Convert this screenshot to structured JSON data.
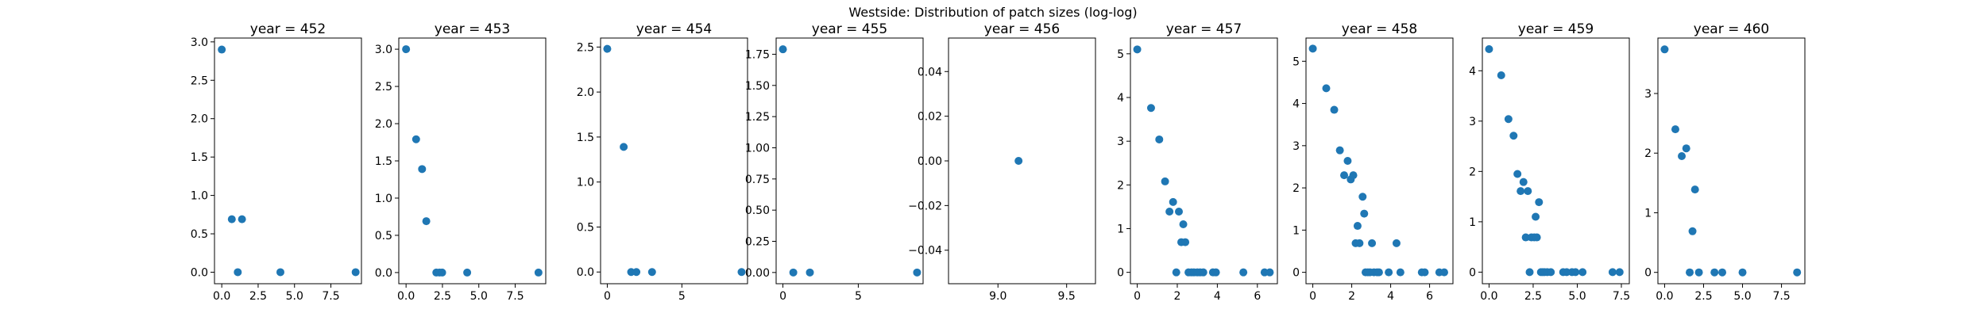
{
  "suptitle": "Westside: Distribution of patch sizes (log-log)",
  "colors": {
    "marker": "#1f77b4"
  },
  "chart_data": [
    {
      "type": "scatter",
      "title": "year = 452",
      "xlim": [
        -0.5,
        9.6
      ],
      "ylim": [
        -0.15,
        3.05
      ],
      "xticks": [
        0.0,
        2.5,
        5.0,
        7.5
      ],
      "xtick_labels": [
        "0.0",
        "2.5",
        "5.0",
        "7.5"
      ],
      "yticks": [
        0.0,
        0.5,
        1.0,
        1.5,
        2.0,
        2.5,
        3.0
      ],
      "ytick_labels": [
        "0.0",
        "0.5",
        "1.0",
        "1.5",
        "2.0",
        "2.5",
        "3.0"
      ],
      "points": [
        [
          0.0,
          2.9
        ],
        [
          0.69,
          0.69
        ],
        [
          1.1,
          0.0
        ],
        [
          1.39,
          0.69
        ],
        [
          4.03,
          0.0
        ],
        [
          9.2,
          0.0
        ]
      ]
    },
    {
      "type": "scatter",
      "title": "year = 453",
      "xlim": [
        -0.5,
        9.6
      ],
      "ylim": [
        -0.15,
        3.15
      ],
      "xticks": [
        0.0,
        2.5,
        5.0,
        7.5
      ],
      "xtick_labels": [
        "0.0",
        "2.5",
        "5.0",
        "7.5"
      ],
      "yticks": [
        0.0,
        0.5,
        1.0,
        1.5,
        2.0,
        2.5,
        3.0
      ],
      "ytick_labels": [
        "0.0",
        "0.5",
        "1.0",
        "1.5",
        "2.0",
        "2.5",
        "3.0"
      ],
      "points": [
        [
          0.0,
          3.0
        ],
        [
          0.69,
          1.79
        ],
        [
          1.1,
          1.39
        ],
        [
          1.39,
          0.69
        ],
        [
          2.08,
          0.0
        ],
        [
          2.3,
          0.0
        ],
        [
          2.48,
          0.0
        ],
        [
          4.2,
          0.0
        ],
        [
          9.1,
          0.0
        ]
      ]
    },
    {
      "type": "scatter",
      "title": "year = 454",
      "xlim": [
        -0.45,
        9.4
      ],
      "ylim": [
        -0.13,
        2.6
      ],
      "xticks": [
        0,
        5
      ],
      "xtick_labels": [
        "0",
        "5"
      ],
      "yticks": [
        0.0,
        0.5,
        1.0,
        1.5,
        2.0,
        2.5
      ],
      "ytick_labels": [
        "0.0",
        "0.5",
        "1.0",
        "1.5",
        "2.0",
        "2.5"
      ],
      "points": [
        [
          0.0,
          2.48
        ],
        [
          1.1,
          1.39
        ],
        [
          1.6,
          0.0
        ],
        [
          1.95,
          0.0
        ],
        [
          3.0,
          0.0
        ],
        [
          9.0,
          0.0
        ]
      ]
    },
    {
      "type": "scatter",
      "title": "year = 455",
      "xlim": [
        -0.45,
        9.3
      ],
      "ylim": [
        -0.09,
        1.88
      ],
      "xticks": [
        0,
        5
      ],
      "xtick_labels": [
        "0",
        "5"
      ],
      "yticks": [
        0.0,
        0.25,
        0.5,
        0.75,
        1.0,
        1.25,
        1.5,
        1.75
      ],
      "ytick_labels": [
        "0.00",
        "0.25",
        "0.50",
        "0.75",
        "1.00",
        "1.25",
        "1.50",
        "1.75"
      ],
      "points": [
        [
          0.0,
          1.79
        ],
        [
          0.69,
          0.0
        ],
        [
          1.79,
          0.0
        ],
        [
          8.9,
          0.0
        ]
      ]
    },
    {
      "type": "scatter",
      "title": "year = 456",
      "xlim": [
        8.64,
        9.71
      ],
      "ylim": [
        -0.055,
        0.055
      ],
      "xticks": [
        9.0,
        9.5
      ],
      "xtick_labels": [
        "9.0",
        "9.5"
      ],
      "yticks": [
        -0.04,
        -0.02,
        0.0,
        0.02,
        0.04
      ],
      "ytick_labels": [
        "−0.04",
        "−0.02",
        "0.00",
        "0.02",
        "0.04"
      ],
      "points": [
        [
          9.15,
          0.0
        ]
      ]
    },
    {
      "type": "scatter",
      "title": "year = 457",
      "xlim": [
        -0.34,
        7.0
      ],
      "ylim": [
        -0.26,
        5.36
      ],
      "xticks": [
        0,
        2,
        4,
        6
      ],
      "xtick_labels": [
        "0",
        "2",
        "4",
        "6"
      ],
      "yticks": [
        0,
        1,
        2,
        3,
        4,
        5
      ],
      "ytick_labels": [
        "0",
        "1",
        "2",
        "3",
        "4",
        "5"
      ],
      "points": [
        [
          0.0,
          5.1
        ],
        [
          0.69,
          3.76
        ],
        [
          1.1,
          3.04
        ],
        [
          1.39,
          2.08
        ],
        [
          1.61,
          1.39
        ],
        [
          1.79,
          1.61
        ],
        [
          1.95,
          0.0
        ],
        [
          2.08,
          1.39
        ],
        [
          2.2,
          0.69
        ],
        [
          2.3,
          1.1
        ],
        [
          2.4,
          0.69
        ],
        [
          2.56,
          0.0
        ],
        [
          2.71,
          0.0
        ],
        [
          2.83,
          0.0
        ],
        [
          3.0,
          0.0
        ],
        [
          3.14,
          0.0
        ],
        [
          3.3,
          0.0
        ],
        [
          3.78,
          0.0
        ],
        [
          3.93,
          0.0
        ],
        [
          5.3,
          0.0
        ],
        [
          6.36,
          0.0
        ],
        [
          6.62,
          0.0
        ]
      ]
    },
    {
      "type": "scatter",
      "title": "year = 458",
      "xlim": [
        -0.35,
        7.2
      ],
      "ylim": [
        -0.27,
        5.55
      ],
      "xticks": [
        0,
        2,
        4,
        6
      ],
      "xtick_labels": [
        "0",
        "2",
        "4",
        "6"
      ],
      "yticks": [
        0,
        1,
        2,
        3,
        4,
        5
      ],
      "ytick_labels": [
        "0",
        "1",
        "2",
        "3",
        "4",
        "5"
      ],
      "points": [
        [
          0.0,
          5.3
        ],
        [
          0.69,
          4.36
        ],
        [
          1.1,
          3.85
        ],
        [
          1.39,
          2.89
        ],
        [
          1.61,
          2.3
        ],
        [
          1.79,
          2.64
        ],
        [
          1.95,
          2.2
        ],
        [
          2.08,
          2.3
        ],
        [
          2.2,
          0.69
        ],
        [
          2.3,
          1.1
        ],
        [
          2.4,
          0.69
        ],
        [
          2.56,
          1.79
        ],
        [
          2.64,
          1.39
        ],
        [
          2.71,
          0.0
        ],
        [
          2.83,
          0.0
        ],
        [
          2.94,
          0.0
        ],
        [
          3.04,
          0.69
        ],
        [
          3.14,
          0.0
        ],
        [
          3.3,
          0.0
        ],
        [
          3.4,
          0.0
        ],
        [
          3.9,
          0.0
        ],
        [
          4.3,
          0.69
        ],
        [
          4.5,
          0.0
        ],
        [
          5.6,
          0.0
        ],
        [
          5.75,
          0.0
        ],
        [
          6.5,
          0.0
        ],
        [
          6.75,
          0.0
        ]
      ]
    },
    {
      "type": "scatter",
      "title": "year = 459",
      "xlim": [
        -0.38,
        7.95
      ],
      "ylim": [
        -0.23,
        4.65
      ],
      "xticks": [
        0.0,
        2.5,
        5.0,
        7.5
      ],
      "xtick_labels": [
        "0.0",
        "2.5",
        "5.0",
        "7.5"
      ],
      "yticks": [
        0,
        1,
        2,
        3,
        4
      ],
      "ytick_labels": [
        "0",
        "1",
        "2",
        "3",
        "4"
      ],
      "points": [
        [
          0.0,
          4.43
        ],
        [
          0.69,
          3.91
        ],
        [
          1.1,
          3.04
        ],
        [
          1.39,
          2.71
        ],
        [
          1.61,
          1.95
        ],
        [
          1.79,
          1.61
        ],
        [
          1.95,
          1.79
        ],
        [
          2.08,
          0.69
        ],
        [
          2.2,
          1.61
        ],
        [
          2.3,
          0.0
        ],
        [
          2.4,
          0.69
        ],
        [
          2.56,
          0.69
        ],
        [
          2.64,
          1.1
        ],
        [
          2.71,
          0.69
        ],
        [
          2.83,
          1.39
        ],
        [
          2.94,
          0.0
        ],
        [
          3.04,
          0.0
        ],
        [
          3.14,
          0.0
        ],
        [
          3.3,
          0.0
        ],
        [
          3.5,
          0.0
        ],
        [
          4.2,
          0.0
        ],
        [
          4.4,
          0.0
        ],
        [
          4.7,
          0.0
        ],
        [
          4.9,
          0.0
        ],
        [
          5.3,
          0.0
        ],
        [
          7.0,
          0.0
        ],
        [
          7.4,
          0.0
        ]
      ]
    },
    {
      "type": "scatter",
      "title": "year = 460",
      "xlim": [
        -0.43,
        9.0
      ],
      "ylim": [
        -0.19,
        3.93
      ],
      "xticks": [
        0.0,
        2.5,
        5.0,
        7.5
      ],
      "xtick_labels": [
        "0.0",
        "2.5",
        "5.0",
        "7.5"
      ],
      "yticks": [
        0,
        1,
        2,
        3
      ],
      "ytick_labels": [
        "0",
        "1",
        "2",
        "3"
      ],
      "points": [
        [
          0.0,
          3.74
        ],
        [
          0.69,
          2.4
        ],
        [
          1.1,
          1.95
        ],
        [
          1.39,
          2.08
        ],
        [
          1.61,
          0.0
        ],
        [
          1.79,
          0.69
        ],
        [
          1.95,
          1.39
        ],
        [
          2.2,
          0.0
        ],
        [
          3.2,
          0.0
        ],
        [
          3.7,
          0.0
        ],
        [
          5.0,
          0.0
        ],
        [
          8.5,
          0.0
        ]
      ]
    }
  ]
}
